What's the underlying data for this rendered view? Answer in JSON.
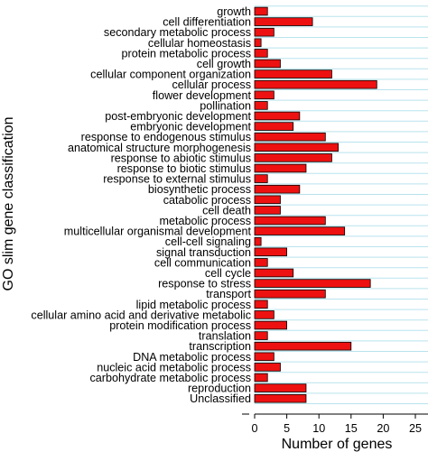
{
  "chart_data": {
    "type": "bar",
    "orientation": "horizontal",
    "categories": [
      "growth",
      "cell differentiation",
      "secondary metabolic process",
      "cellular homeostasis",
      "protein metabolic process",
      "cell growth",
      "cellular component organization",
      "cellular process",
      "flower development",
      "pollination",
      "post-embryonic development",
      "embryonic development",
      "response to endogenous stimulus",
      "anatomical structure morphogenesis",
      "response to abiotic stimulus",
      "response to biotic stimulus",
      "response to external stimulus",
      "biosynthetic process",
      "catabolic process",
      "cell death",
      "metabolic process",
      "multicellular organismal development",
      "cell-cell signaling",
      "signal transduction",
      "cell communication",
      "cell cycle",
      "response to stress",
      "transport",
      "lipid metabolic process",
      "cellular amino acid and derivative metabolic",
      "protein modification process",
      "translation",
      "transcription",
      "DNA metabolic process",
      "nucleic acid metabolic process",
      "carbohydrate metabolic process",
      "reproduction",
      "Unclassified"
    ],
    "values": [
      2,
      9,
      3,
      1,
      2,
      4,
      12,
      19,
      3,
      2,
      7,
      6,
      11,
      13,
      12,
      8,
      2,
      7,
      4,
      4,
      11,
      14,
      1,
      5,
      2,
      6,
      18,
      11,
      2,
      3,
      5,
      2,
      15,
      3,
      4,
      2,
      8,
      8
    ],
    "xlabel": "Number of genes",
    "ylabel": "GO slim gene classification",
    "xlim": [
      0,
      25
    ],
    "xticks": [
      "0",
      "5",
      "10",
      "15",
      "20",
      "25"
    ],
    "grid": "horizontal",
    "bar_color": "#ee1111",
    "grid_color": "#b9e3ee"
  }
}
